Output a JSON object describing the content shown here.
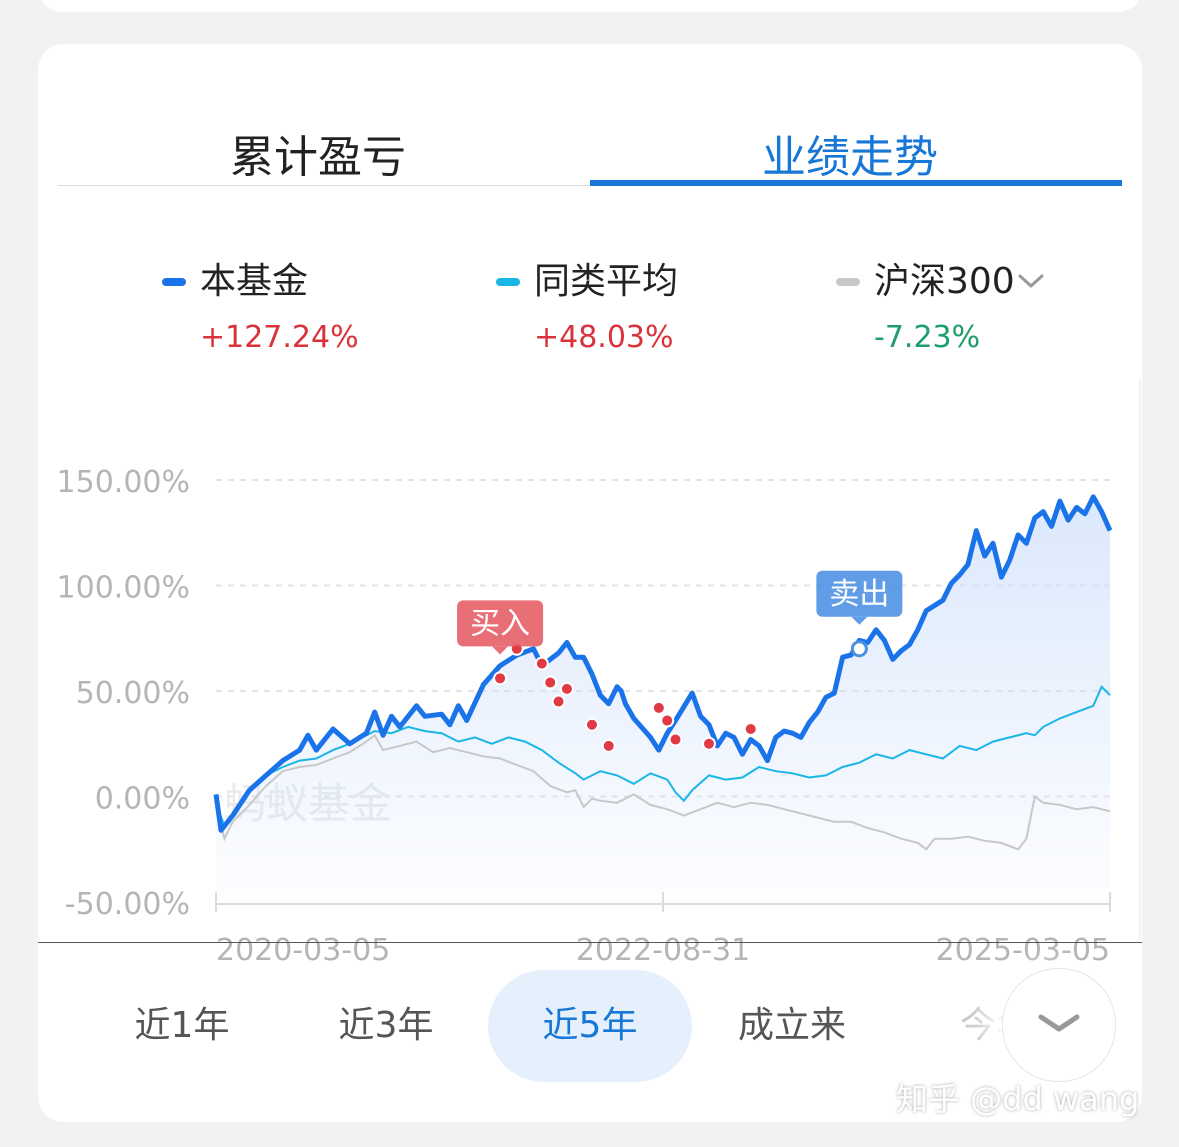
{
  "tabs": [
    {
      "label": "累计盈亏",
      "active": false
    },
    {
      "label": "业绩走势",
      "active": true
    }
  ],
  "legend": [
    {
      "name": "本基金",
      "value": "+127.24%",
      "color": "#1a73e8",
      "value_color": "#d9323b"
    },
    {
      "name": "同类平均",
      "value": "+48.03%",
      "color": "#1ab6e6",
      "value_color": "#d9323b"
    },
    {
      "name": "沪深300",
      "value": "-7.23%",
      "color": "#c8c8c8",
      "value_color": "#1f9d6a",
      "icon": "chevron-down-icon"
    }
  ],
  "chart_watermark": "蚂蚁基金",
  "chart_data": {
    "type": "line",
    "x_tick_labels": [
      "2020-03-05",
      "2022-08-31",
      "2025-03-05"
    ],
    "y_tick_labels": [
      "150.00%",
      "100.00%",
      "50.00%",
      "0.00%",
      "-50.00%"
    ],
    "ylim": [
      -50,
      150
    ],
    "grid": true,
    "series": [
      {
        "name": "本基金",
        "color": "#1a73e8",
        "points": [
          [
            0,
            1
          ],
          [
            0.6,
            -16
          ],
          [
            2,
            -9
          ],
          [
            4,
            3
          ],
          [
            6,
            10
          ],
          [
            8,
            17
          ],
          [
            10,
            22
          ],
          [
            11,
            29
          ],
          [
            12,
            22
          ],
          [
            14,
            32
          ],
          [
            16,
            25
          ],
          [
            18,
            30
          ],
          [
            19,
            40
          ],
          [
            20,
            29
          ],
          [
            21,
            38
          ],
          [
            22,
            33
          ],
          [
            24,
            43
          ],
          [
            25,
            38
          ],
          [
            27,
            39
          ],
          [
            28,
            34
          ],
          [
            29,
            43
          ],
          [
            30,
            36
          ],
          [
            32,
            53
          ],
          [
            34,
            62
          ],
          [
            36,
            67
          ],
          [
            38,
            70
          ],
          [
            39,
            62
          ],
          [
            40,
            65
          ],
          [
            41,
            68
          ],
          [
            42,
            73
          ],
          [
            43,
            66
          ],
          [
            44,
            66
          ],
          [
            45,
            58
          ],
          [
            46,
            48
          ],
          [
            47,
            44
          ],
          [
            48,
            52
          ],
          [
            48.5,
            50
          ],
          [
            49,
            44
          ],
          [
            50,
            37
          ],
          [
            52,
            28
          ],
          [
            53,
            22
          ],
          [
            54,
            30
          ],
          [
            55,
            36
          ],
          [
            57,
            49
          ],
          [
            58,
            38
          ],
          [
            59,
            34
          ],
          [
            60,
            24
          ],
          [
            61,
            30
          ],
          [
            62,
            28
          ],
          [
            63,
            20
          ],
          [
            64,
            27
          ],
          [
            65,
            24
          ],
          [
            66,
            17
          ],
          [
            67,
            28
          ],
          [
            68,
            31
          ],
          [
            69,
            30
          ],
          [
            70,
            28
          ],
          [
            71,
            35
          ],
          [
            72,
            40
          ],
          [
            73,
            47
          ],
          [
            74,
            49
          ],
          [
            75,
            66
          ],
          [
            76,
            67
          ],
          [
            77,
            74
          ],
          [
            78,
            73
          ],
          [
            79,
            79
          ],
          [
            80,
            74
          ],
          [
            81,
            65
          ],
          [
            82,
            69
          ],
          [
            83,
            72
          ],
          [
            84,
            79
          ],
          [
            85,
            88
          ],
          [
            87,
            93
          ],
          [
            88,
            101
          ],
          [
            89,
            105
          ],
          [
            90,
            110
          ],
          [
            91,
            126
          ],
          [
            92,
            114
          ],
          [
            93,
            120
          ],
          [
            94,
            104
          ],
          [
            95,
            112
          ],
          [
            96,
            124
          ],
          [
            97,
            120
          ],
          [
            98,
            132
          ],
          [
            99,
            135
          ],
          [
            100,
            128
          ],
          [
            101,
            140
          ],
          [
            102,
            131
          ],
          [
            103,
            137
          ],
          [
            104,
            134
          ],
          [
            105,
            142
          ],
          [
            106,
            135
          ],
          [
            107,
            126
          ]
        ]
      },
      {
        "name": "同类平均",
        "color": "#1ab6e6",
        "points": [
          [
            0,
            -3
          ],
          [
            1,
            -14
          ],
          [
            2,
            -8
          ],
          [
            4,
            3
          ],
          [
            6,
            10
          ],
          [
            8,
            14
          ],
          [
            10,
            17
          ],
          [
            12,
            18
          ],
          [
            14,
            22
          ],
          [
            16,
            25
          ],
          [
            18,
            29
          ],
          [
            19,
            31
          ],
          [
            21,
            30
          ],
          [
            23,
            33
          ],
          [
            25,
            31
          ],
          [
            27,
            30
          ],
          [
            29,
            26
          ],
          [
            31,
            28
          ],
          [
            33,
            25
          ],
          [
            35,
            28
          ],
          [
            37,
            26
          ],
          [
            39,
            22
          ],
          [
            41,
            16
          ],
          [
            43,
            11
          ],
          [
            44,
            8
          ],
          [
            46,
            12
          ],
          [
            48,
            10
          ],
          [
            50,
            6
          ],
          [
            52,
            11
          ],
          [
            54,
            8
          ],
          [
            55,
            2
          ],
          [
            56,
            -2
          ],
          [
            57,
            3
          ],
          [
            59,
            10
          ],
          [
            61,
            8
          ],
          [
            63,
            9
          ],
          [
            65,
            14
          ],
          [
            67,
            12
          ],
          [
            69,
            11
          ],
          [
            71,
            9
          ],
          [
            73,
            10
          ],
          [
            75,
            14
          ],
          [
            77,
            16
          ],
          [
            79,
            20
          ],
          [
            81,
            18
          ],
          [
            83,
            22
          ],
          [
            85,
            20
          ],
          [
            87,
            18
          ],
          [
            89,
            24
          ],
          [
            91,
            22
          ],
          [
            93,
            26
          ],
          [
            95,
            28
          ],
          [
            97,
            30
          ],
          [
            98,
            29
          ],
          [
            99,
            33
          ],
          [
            101,
            37
          ],
          [
            103,
            40
          ],
          [
            105,
            43
          ],
          [
            106,
            52
          ],
          [
            107,
            48
          ]
        ]
      },
      {
        "name": "沪深300",
        "color": "#c8c8c8",
        "points": [
          [
            0,
            -3
          ],
          [
            1,
            -20
          ],
          [
            2,
            -12
          ],
          [
            4,
            -4
          ],
          [
            6,
            5
          ],
          [
            8,
            12
          ],
          [
            10,
            14
          ],
          [
            12,
            15
          ],
          [
            14,
            18
          ],
          [
            16,
            21
          ],
          [
            18,
            26
          ],
          [
            19,
            29
          ],
          [
            20,
            22
          ],
          [
            22,
            24
          ],
          [
            24,
            26
          ],
          [
            26,
            21
          ],
          [
            28,
            23
          ],
          [
            30,
            21
          ],
          [
            32,
            19
          ],
          [
            34,
            18
          ],
          [
            36,
            15
          ],
          [
            38,
            12
          ],
          [
            40,
            5
          ],
          [
            42,
            2
          ],
          [
            43,
            3
          ],
          [
            44,
            -5
          ],
          [
            45,
            -1
          ],
          [
            46,
            -2
          ],
          [
            48,
            -3
          ],
          [
            50,
            1
          ],
          [
            52,
            -4
          ],
          [
            54,
            -6
          ],
          [
            56,
            -9
          ],
          [
            58,
            -6
          ],
          [
            60,
            -3
          ],
          [
            62,
            -5
          ],
          [
            64,
            -3
          ],
          [
            66,
            -4
          ],
          [
            68,
            -6
          ],
          [
            70,
            -8
          ],
          [
            72,
            -10
          ],
          [
            74,
            -12
          ],
          [
            76,
            -12
          ],
          [
            78,
            -15
          ],
          [
            80,
            -17
          ],
          [
            82,
            -20
          ],
          [
            84,
            -22
          ],
          [
            85,
            -25
          ],
          [
            86,
            -20
          ],
          [
            88,
            -20
          ],
          [
            90,
            -19
          ],
          [
            92,
            -21
          ],
          [
            94,
            -22
          ],
          [
            96,
            -25
          ],
          [
            97,
            -20
          ],
          [
            98,
            0
          ],
          [
            99,
            -3
          ],
          [
            101,
            -4
          ],
          [
            103,
            -6
          ],
          [
            105,
            -5
          ],
          [
            107,
            -7
          ]
        ]
      }
    ],
    "buy_markers": [
      [
        34,
        56
      ],
      [
        36,
        70
      ],
      [
        39,
        63
      ],
      [
        40,
        54
      ],
      [
        41,
        45
      ],
      [
        42,
        51
      ],
      [
        45,
        34
      ],
      [
        47,
        24
      ],
      [
        53,
        42
      ],
      [
        54,
        36
      ],
      [
        55,
        27
      ],
      [
        59,
        25
      ],
      [
        64,
        32
      ]
    ],
    "annotations": [
      {
        "label": "买入",
        "x": 34,
        "y": 56,
        "color": "#e65b63"
      },
      {
        "label": "卖出",
        "x": 77,
        "y": 70,
        "color": "#4a90e2"
      }
    ]
  },
  "range_buttons": [
    {
      "label": "近1年",
      "active": false
    },
    {
      "label": "近3年",
      "active": false
    },
    {
      "label": "近5年",
      "active": true
    },
    {
      "label": "成立来",
      "active": false
    },
    {
      "label": "今年",
      "active": false
    }
  ],
  "expand_icon": "chevron-down-icon",
  "page_watermark": "知乎 @dd wang"
}
